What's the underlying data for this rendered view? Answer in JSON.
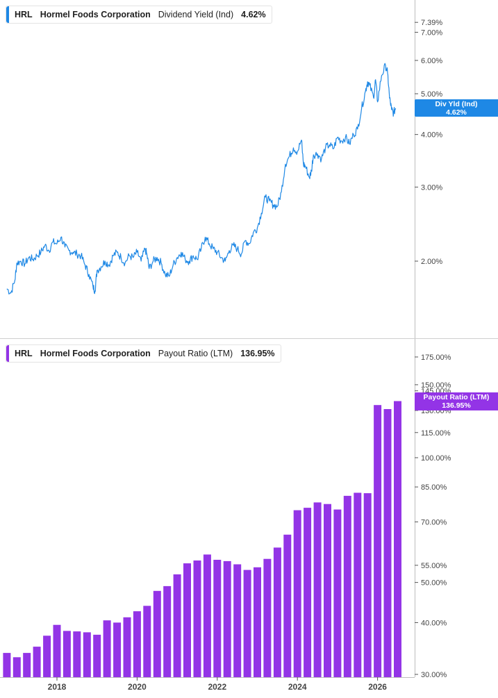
{
  "colors": {
    "yield": "#1e88e5",
    "payout": "#9334e6",
    "axis": "#555555",
    "grid": "#d0d0d0"
  },
  "panels": {
    "top": {
      "ticker": "HRL",
      "company": "Hormel Foods Corporation",
      "metric": "Dividend Yield (Ind)",
      "value": "4.62%",
      "tag_line1": "Div Yld (Ind)",
      "tag_line2": "4.62%"
    },
    "bottom": {
      "ticker": "HRL",
      "company": "Hormel Foods Corporation",
      "metric": "Payout Ratio (LTM)",
      "value": "136.95%",
      "tag_line1": "Payout Ratio (LTM)",
      "tag_line2": "136.95%"
    }
  },
  "chart_data": [
    {
      "type": "line",
      "scale": "log",
      "series": [
        {
          "name": "Dividend Yield (Ind)"
        }
      ],
      "y_ticks": [
        "7.39%",
        "7.00%",
        "6.00%",
        "5.00%",
        "4.00%",
        "3.00%",
        "2.00%"
      ],
      "y_tick_values": [
        7.39,
        7.0,
        6.0,
        5.0,
        4.0,
        3.0,
        2.0
      ],
      "points": [
        [
          2016.75,
          1.72
        ],
        [
          2016.85,
          1.68
        ],
        [
          2016.95,
          1.8
        ],
        [
          2017.0,
          1.98
        ],
        [
          2017.1,
          2.0
        ],
        [
          2017.2,
          1.97
        ],
        [
          2017.3,
          2.04
        ],
        [
          2017.4,
          2.02
        ],
        [
          2017.5,
          2.06
        ],
        [
          2017.6,
          2.1
        ],
        [
          2017.7,
          2.18
        ],
        [
          2017.8,
          2.12
        ],
        [
          2017.9,
          2.22
        ],
        [
          2018.0,
          2.2
        ],
        [
          2018.1,
          2.28
        ],
        [
          2018.2,
          2.16
        ],
        [
          2018.3,
          2.12
        ],
        [
          2018.4,
          2.1
        ],
        [
          2018.5,
          2.08
        ],
        [
          2018.6,
          2.06
        ],
        [
          2018.7,
          1.96
        ],
        [
          2018.8,
          1.86
        ],
        [
          2018.9,
          1.74
        ],
        [
          2018.95,
          1.7
        ],
        [
          2019.0,
          1.9
        ],
        [
          2019.1,
          1.94
        ],
        [
          2019.2,
          2.0
        ],
        [
          2019.3,
          1.96
        ],
        [
          2019.4,
          2.06
        ],
        [
          2019.5,
          2.1
        ],
        [
          2019.6,
          2.04
        ],
        [
          2019.7,
          1.98
        ],
        [
          2019.8,
          2.06
        ],
        [
          2019.9,
          2.04
        ],
        [
          2020.0,
          2.1
        ],
        [
          2020.1,
          2.0
        ],
        [
          2020.2,
          2.14
        ],
        [
          2020.25,
          2.06
        ],
        [
          2020.3,
          1.92
        ],
        [
          2020.4,
          2.0
        ],
        [
          2020.5,
          2.04
        ],
        [
          2020.6,
          1.98
        ],
        [
          2020.7,
          1.86
        ],
        [
          2020.8,
          1.84
        ],
        [
          2020.9,
          1.96
        ],
        [
          2021.0,
          2.04
        ],
        [
          2021.1,
          2.1
        ],
        [
          2021.2,
          2.02
        ],
        [
          2021.3,
          2.0
        ],
        [
          2021.4,
          2.06
        ],
        [
          2021.5,
          2.02
        ],
        [
          2021.6,
          2.14
        ],
        [
          2021.7,
          2.28
        ],
        [
          2021.8,
          2.2
        ],
        [
          2021.9,
          2.14
        ],
        [
          2022.0,
          2.1
        ],
        [
          2022.1,
          2.04
        ],
        [
          2022.2,
          2.0
        ],
        [
          2022.3,
          2.12
        ],
        [
          2022.4,
          2.18
        ],
        [
          2022.5,
          2.14
        ],
        [
          2022.6,
          2.08
        ],
        [
          2022.7,
          2.24
        ],
        [
          2022.8,
          2.2
        ],
        [
          2022.9,
          2.34
        ],
        [
          2023.0,
          2.4
        ],
        [
          2023.1,
          2.6
        ],
        [
          2023.2,
          2.84
        ],
        [
          2023.3,
          2.78
        ],
        [
          2023.4,
          2.72
        ],
        [
          2023.5,
          2.7
        ],
        [
          2023.6,
          2.92
        ],
        [
          2023.7,
          3.4
        ],
        [
          2023.8,
          3.55
        ],
        [
          2023.9,
          3.72
        ],
        [
          2024.0,
          3.64
        ],
        [
          2024.1,
          3.88
        ],
        [
          2024.15,
          3.4
        ],
        [
          2024.2,
          3.36
        ],
        [
          2024.3,
          3.16
        ],
        [
          2024.35,
          3.28
        ],
        [
          2024.4,
          3.58
        ],
        [
          2024.5,
          3.6
        ],
        [
          2024.6,
          3.5
        ],
        [
          2024.7,
          3.72
        ],
        [
          2024.8,
          3.78
        ],
        [
          2024.9,
          3.7
        ],
        [
          2025.0,
          3.94
        ],
        [
          2025.1,
          3.86
        ],
        [
          2025.2,
          3.94
        ],
        [
          2025.3,
          3.8
        ],
        [
          2025.4,
          4.0
        ],
        [
          2025.5,
          4.12
        ],
        [
          2025.6,
          4.6
        ],
        [
          2025.7,
          5.08
        ],
        [
          2025.75,
          5.34
        ],
        [
          2025.8,
          5.24
        ],
        [
          2025.9,
          4.9
        ],
        [
          2025.95,
          5.4
        ],
        [
          2026.0,
          4.78
        ],
        [
          2026.1,
          5.52
        ],
        [
          2026.2,
          5.84
        ],
        [
          2026.25,
          5.6
        ],
        [
          2026.3,
          4.88
        ],
        [
          2026.35,
          4.58
        ],
        [
          2026.4,
          4.5
        ],
        [
          2026.45,
          4.62
        ]
      ]
    },
    {
      "type": "bar",
      "scale": "log",
      "series": [
        {
          "name": "Payout Ratio (LTM)"
        }
      ],
      "y_ticks": [
        "175.00%",
        "150.00%",
        "145.00%",
        "130.00%",
        "115.00%",
        "100.00%",
        "85.00%",
        "70.00%",
        "55.00%",
        "50.00%",
        "40.00%",
        "30.00%"
      ],
      "y_tick_values": [
        175,
        150,
        145,
        130,
        115,
        100,
        85,
        70,
        55,
        50,
        40,
        30
      ],
      "x_ticks": [
        "2018",
        "2020",
        "2022",
        "2024",
        "2026"
      ],
      "x_tick_values": [
        2018,
        2020,
        2022,
        2024,
        2026
      ],
      "bars": [
        [
          2016.75,
          33.8
        ],
        [
          2017.0,
          33.0
        ],
        [
          2017.25,
          33.8
        ],
        [
          2017.5,
          35.0
        ],
        [
          2017.75,
          37.2
        ],
        [
          2018.0,
          39.5
        ],
        [
          2018.25,
          38.2
        ],
        [
          2018.5,
          38.1
        ],
        [
          2018.75,
          37.9
        ],
        [
          2019.0,
          37.4
        ],
        [
          2019.25,
          40.5
        ],
        [
          2019.5,
          40.0
        ],
        [
          2019.75,
          41.2
        ],
        [
          2020.0,
          42.6
        ],
        [
          2020.25,
          43.9
        ],
        [
          2020.5,
          47.7
        ],
        [
          2020.75,
          49.0
        ],
        [
          2021.0,
          52.3
        ],
        [
          2021.25,
          55.6
        ],
        [
          2021.5,
          56.5
        ],
        [
          2021.75,
          58.4
        ],
        [
          2022.0,
          56.7
        ],
        [
          2022.25,
          56.3
        ],
        [
          2022.5,
          55.3
        ],
        [
          2022.75,
          53.6
        ],
        [
          2023.0,
          54.4
        ],
        [
          2023.25,
          57.0
        ],
        [
          2023.5,
          60.7
        ],
        [
          2023.75,
          65.2
        ],
        [
          2024.0,
          74.7
        ],
        [
          2024.25,
          75.7
        ],
        [
          2024.5,
          78.0
        ],
        [
          2024.75,
          77.3
        ],
        [
          2025.0,
          75.0
        ],
        [
          2025.25,
          80.9
        ],
        [
          2025.5,
          82.3
        ],
        [
          2025.75,
          82.1
        ],
        [
          2026.0,
          134.0
        ],
        [
          2026.25,
          131.0
        ],
        [
          2026.5,
          136.95
        ]
      ]
    }
  ]
}
